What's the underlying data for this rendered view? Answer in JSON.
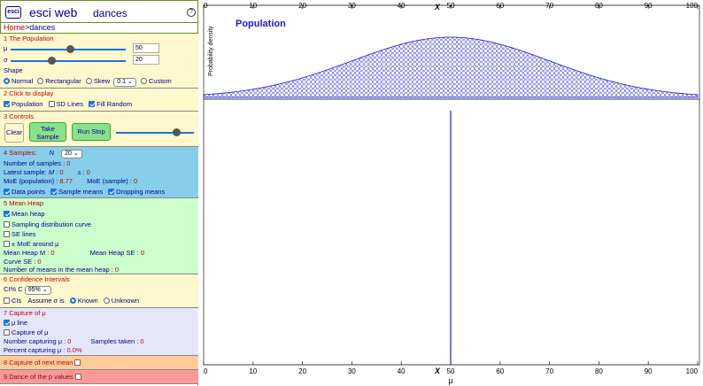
{
  "header": {
    "logo_text": "esci",
    "app_title": "esci web",
    "module": "dances",
    "help": "?"
  },
  "breadcrumb": {
    "home": "Home",
    "sep": ">",
    "current": "dances"
  },
  "population": {
    "title": "1 The Population",
    "mu_label": "μ",
    "mu_value": "50",
    "sigma_label": "σ",
    "sigma_value": "20",
    "shape_label": "Shape",
    "shapes": [
      "Normal",
      "Rectangular",
      "Skew",
      "Custom"
    ],
    "skew_value": "0.1"
  },
  "display": {
    "title": "2 Click to display",
    "items": [
      "Population",
      "SD Lines",
      "Fill Random"
    ]
  },
  "controls": {
    "title": "3 Controls",
    "clear": "Clear",
    "take_sample": "Take Sample",
    "run_stop": "Run Stop"
  },
  "samples": {
    "title": "4 Samples:",
    "n_label": "N",
    "n_value": "20",
    "num_samples_label": "Number of samples :",
    "num_samples": "0",
    "latest_label": "Latest sample:",
    "m_label": "M :",
    "m_value": "0",
    "s_label": "s :",
    "s_value": "0",
    "moe_pop_label": "MoE (population) :",
    "moe_pop": "8.77",
    "moe_sample_label": "MoE (sample) :",
    "moe_sample": "0",
    "checks": [
      "Data points",
      "Sample means",
      "Dropping means"
    ]
  },
  "mean_heap": {
    "title": "5 Mean Heap",
    "checks": [
      "Mean heap",
      "Sampling distribution curve",
      "SE lines",
      "± MoE around μ"
    ],
    "m_label": "Mean Heap M :",
    "m_value": "0",
    "se_label": "Mean Heap SE :",
    "se_value": "0",
    "curve_se_label": "Curve SE :",
    "curve_se": "0",
    "count_label": "Number of means in the mean heap :",
    "count": "0"
  },
  "ci": {
    "title": "6 Confidence Intervals",
    "ci_label": "CI% C",
    "ci_value": "95%",
    "cis": "CIs",
    "assume": "Assume σ is",
    "known": "Known",
    "unknown": "Unknown"
  },
  "capture": {
    "title": "7 Capture of μ",
    "mu_line": "μ line",
    "capture_mu": "Capture of μ",
    "num_label": "Number capturing μ :",
    "num_value": "0",
    "taken_label": "Samples taken :",
    "taken_value": "0",
    "pct_label": "Percent capturing μ :",
    "pct_value": "0.0%"
  },
  "next_mean": {
    "title": "8 Capture of next mean"
  },
  "dance_p": {
    "title": "9 Dance of the p values"
  },
  "plot": {
    "title": "Population",
    "ylabel": "Probability density",
    "x_marker": "X",
    "bottom_label": "μ",
    "ticks": [
      "0",
      "10",
      "20",
      "30",
      "40",
      "50",
      "60",
      "70",
      "80",
      "90",
      "100"
    ],
    "mu": 50,
    "sigma": 20,
    "xlim": [
      0,
      100
    ],
    "curve_color": "#1a1ad6"
  }
}
